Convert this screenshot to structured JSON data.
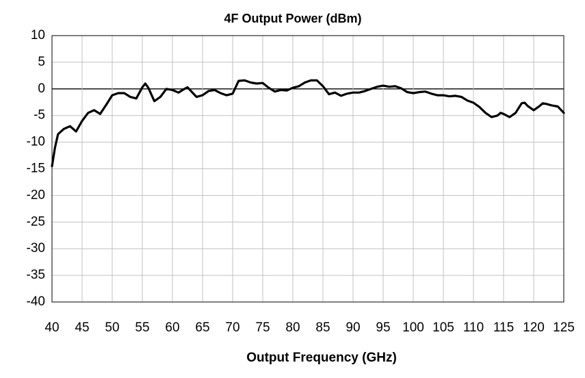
{
  "chart_data": {
    "type": "line",
    "title": "4F Output Power (dBm)",
    "xlabel": "Output Frequency (GHz)",
    "x": [
      40,
      40.5,
      41,
      42,
      43,
      44,
      45,
      46,
      47,
      48,
      49,
      50,
      51,
      52,
      53,
      54,
      55,
      55.5,
      56,
      57,
      58,
      59,
      60,
      61,
      62,
      62.5,
      63,
      64,
      65,
      66,
      67,
      68,
      69,
      70,
      71,
      72,
      73,
      74,
      75,
      76,
      77,
      78,
      79,
      80,
      81,
      82,
      83,
      84,
      85,
      86,
      87,
      88,
      89,
      90,
      91,
      92,
      93,
      94,
      95,
      96,
      97,
      98,
      99,
      100,
      101,
      102,
      103,
      104,
      105,
      106,
      107,
      108,
      109,
      110,
      111,
      112,
      113,
      114,
      114.5,
      115,
      116,
      117,
      118,
      118.5,
      119,
      120,
      121,
      121.5,
      122,
      123,
      124,
      125
    ],
    "series": [
      {
        "name": "4F Output Power",
        "color": "#000000",
        "values": [
          -14.5,
          -11,
          -8.5,
          -7.5,
          -7,
          -8,
          -6,
          -4.5,
          -4,
          -4.7,
          -3,
          -1.2,
          -0.8,
          -0.8,
          -1.5,
          -1.8,
          0.3,
          1,
          0.2,
          -2.3,
          -1.5,
          0,
          -0.2,
          -0.7,
          0,
          0.3,
          -0.3,
          -1.5,
          -1.2,
          -0.4,
          -0.2,
          -0.8,
          -1.2,
          -0.9,
          1.5,
          1.6,
          1.2,
          1,
          1.1,
          0.2,
          -0.5,
          -0.2,
          -0.3,
          0.2,
          0.5,
          1.2,
          1.6,
          1.6,
          0.5,
          -1,
          -0.7,
          -1.3,
          -0.9,
          -0.7,
          -0.7,
          -0.4,
          0,
          0.4,
          0.6,
          0.4,
          0.5,
          0.1,
          -0.6,
          -0.8,
          -0.6,
          -0.5,
          -0.9,
          -1.2,
          -1.2,
          -1.4,
          -1.3,
          -1.5,
          -2.2,
          -2.6,
          -3.4,
          -4.5,
          -5.3,
          -5,
          -4.5,
          -4.7,
          -5.3,
          -4.5,
          -2.7,
          -2.6,
          -3.2,
          -4,
          -3.2,
          -2.7,
          -2.8,
          -3.1,
          -3.3,
          -4.5
        ]
      }
    ],
    "xlim": [
      40,
      125
    ],
    "xticks": [
      40,
      45,
      50,
      55,
      60,
      65,
      70,
      75,
      80,
      85,
      90,
      95,
      100,
      105,
      110,
      115,
      120,
      125
    ],
    "ylim": [
      -40,
      10
    ],
    "yticks": [
      -40,
      -35,
      -30,
      -25,
      -20,
      -15,
      -10,
      -5,
      0,
      5,
      10
    ],
    "grid": true
  }
}
